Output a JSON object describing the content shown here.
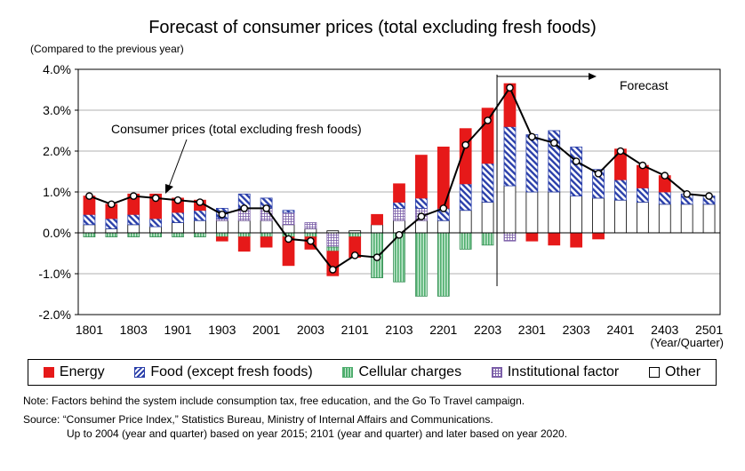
{
  "chart_data": {
    "type": "bar",
    "title": "Forecast of consumer prices (total excluding fresh foods)",
    "unit_label": "(Compared to the previous year)",
    "x_axis_caption": "(Year/Quarter)",
    "ylim": [
      -2.0,
      4.0
    ],
    "y_ticks": [
      "-2.0%",
      "-1.0%",
      "0.0%",
      "1.0%",
      "2.0%",
      "3.0%",
      "4.0%"
    ],
    "y_tick_values": [
      -2,
      -1,
      0,
      1,
      2,
      3,
      4
    ],
    "categories": [
      "1801",
      "1802",
      "1803",
      "1804",
      "1901",
      "1902",
      "1903",
      "1904",
      "2001",
      "2002",
      "2003",
      "2004",
      "2101",
      "2102",
      "2103",
      "2104",
      "2201",
      "2202",
      "2203",
      "2204",
      "2301",
      "2302",
      "2303",
      "2304",
      "2401",
      "2402",
      "2403",
      "2404",
      "2501"
    ],
    "x_tick_labels": [
      "1801",
      "1803",
      "1901",
      "1903",
      "2001",
      "2003",
      "2101",
      "2103",
      "2201",
      "2203",
      "2301",
      "2303",
      "2401",
      "2403",
      "2501"
    ],
    "stacked": true,
    "series": [
      {
        "name": "Other",
        "values": [
          0.2,
          0.1,
          0.2,
          0.15,
          0.25,
          0.3,
          0.3,
          0.3,
          0.3,
          0.2,
          0.1,
          0.05,
          0.05,
          0.2,
          0.3,
          0.3,
          0.3,
          0.55,
          0.75,
          1.15,
          1.0,
          1.0,
          0.9,
          0.85,
          0.8,
          0.75,
          0.7,
          0.7,
          0.7
        ]
      },
      {
        "name": "Institutional factor",
        "values": [
          0.0,
          0.0,
          0.0,
          0.0,
          0.0,
          0.0,
          0.05,
          0.3,
          0.3,
          0.3,
          0.15,
          -0.35,
          0.0,
          0.0,
          0.3,
          0.3,
          0.0,
          0.0,
          0.0,
          -0.2,
          0.0,
          0.0,
          0.0,
          0.0,
          0.0,
          0.0,
          0.0,
          0.0,
          0.0
        ]
      },
      {
        "name": "Food (except fresh foods)",
        "values": [
          0.25,
          0.25,
          0.25,
          0.2,
          0.25,
          0.25,
          0.25,
          0.35,
          0.25,
          0.05,
          0.0,
          0.0,
          0.0,
          0.0,
          0.15,
          0.25,
          0.3,
          0.65,
          0.95,
          1.45,
          1.4,
          1.5,
          1.2,
          0.7,
          0.5,
          0.35,
          0.3,
          0.25,
          0.2
        ]
      },
      {
        "name": "Cellular charges",
        "values": [
          -0.1,
          -0.1,
          -0.1,
          -0.1,
          -0.1,
          -0.1,
          -0.1,
          -0.1,
          -0.1,
          -0.1,
          -0.1,
          -0.1,
          -0.1,
          -1.1,
          -1.2,
          -1.55,
          -1.55,
          -0.4,
          -0.3,
          0.0,
          0.0,
          0.0,
          0.0,
          0.0,
          0.0,
          0.0,
          0.0,
          0.0,
          0.0
        ]
      },
      {
        "name": "Energy",
        "values": [
          0.45,
          0.35,
          0.5,
          0.6,
          0.35,
          0.25,
          -0.1,
          -0.35,
          -0.25,
          -0.7,
          -0.3,
          -0.6,
          -0.5,
          0.25,
          0.45,
          1.05,
          1.5,
          1.35,
          1.35,
          1.05,
          -0.2,
          -0.3,
          -0.35,
          -0.15,
          0.75,
          0.55,
          0.4,
          0.0,
          0.0
        ]
      }
    ],
    "line": {
      "name": "Consumer prices (total excluding fresh foods)",
      "values": [
        0.9,
        0.7,
        0.9,
        0.85,
        0.8,
        0.75,
        0.45,
        0.6,
        0.6,
        -0.15,
        -0.2,
        -0.9,
        -0.55,
        -0.6,
        -0.05,
        0.4,
        0.6,
        2.15,
        2.75,
        3.55,
        2.35,
        2.2,
        1.75,
        1.45,
        2.0,
        1.65,
        1.4,
        0.95,
        0.9
      ]
    },
    "annotations": {
      "line_label": "Consumer prices (total excluding fresh foods)",
      "forecast_label": "Forecast"
    },
    "forecast_start_index": 19,
    "legend": "bottom",
    "colors": {
      "energy": "#e61919",
      "food": "#2a3faa",
      "cellular": "#4fae6e",
      "institutional": "#7b5ea8",
      "other": "#ffffff",
      "line": "#000000"
    }
  },
  "legend_items": {
    "energy": "Energy",
    "food": "Food (except fresh foods)",
    "cellular": "Cellular charges",
    "institutional": "Institutional factor",
    "other": "Other"
  },
  "notes": {
    "note": "Note: Factors behind the system include consumption tax, free education, and the Go To Travel campaign.",
    "source_line1": "Source: “Consumer Price Index,” Statistics Bureau, Ministry of Internal Affairs and Communications.",
    "source_line2": "Up to 2004 (year and quarter) based on year 2015; 2101 (year and quarter) and later based on year 2020."
  }
}
